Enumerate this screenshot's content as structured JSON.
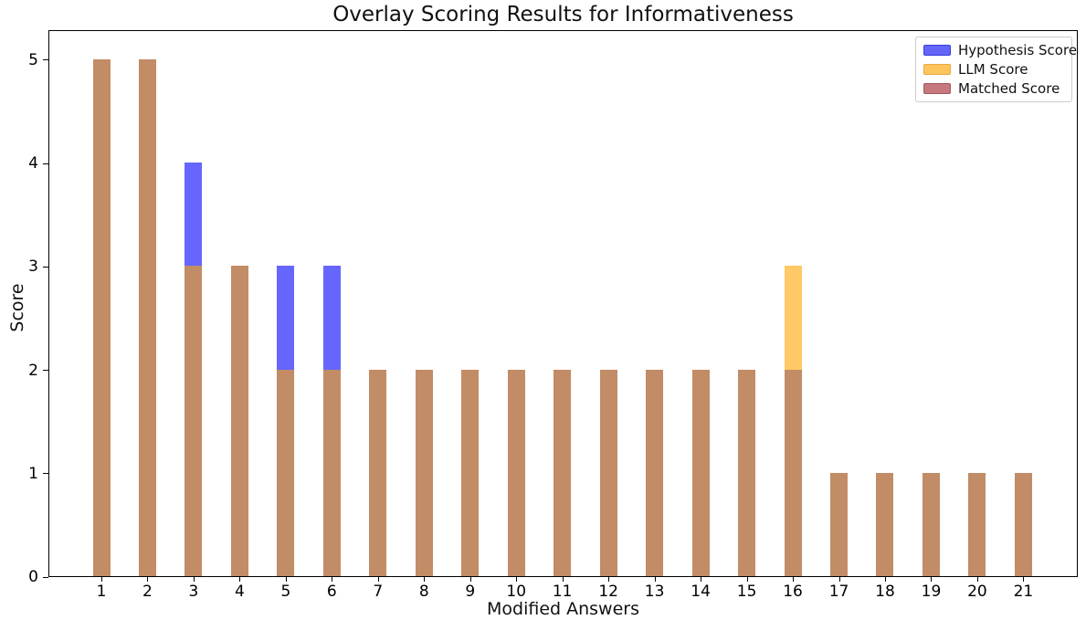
{
  "chart_data": {
    "type": "bar",
    "overlay": true,
    "title": "Overlay Scoring Results for Informativeness",
    "xlabel": "Modified Answers",
    "ylabel": "Score",
    "categories": [
      "1",
      "2",
      "3",
      "4",
      "5",
      "6",
      "7",
      "8",
      "9",
      "10",
      "11",
      "12",
      "13",
      "14",
      "15",
      "16",
      "17",
      "18",
      "19",
      "20",
      "21"
    ],
    "series": [
      {
        "name": "Hypothesis Score",
        "base_color": "#0000ff",
        "alpha": 0.6,
        "css_color": "rgba(0,0,255,0.6)",
        "legend_swatch_color": "#6466f7",
        "legend_swatch_edge": "#3b3de0",
        "values": [
          5,
          5,
          4,
          3,
          3,
          3,
          2,
          2,
          2,
          2,
          2,
          2,
          2,
          2,
          2,
          2,
          1,
          1,
          1,
          1,
          1
        ]
      },
      {
        "name": "LLM Score",
        "base_color": "#ffa500",
        "alpha": 0.6,
        "css_color": "rgba(255,165,0,0.6)",
        "legend_swatch_color": "#fdc55e",
        "legend_swatch_edge": "#e8a93c",
        "values": [
          5,
          5,
          3,
          3,
          2,
          2,
          2,
          2,
          2,
          2,
          2,
          2,
          2,
          2,
          2,
          3,
          1,
          1,
          1,
          1,
          1
        ]
      },
      {
        "name": "Matched Score",
        "base_color": "#a52a2a",
        "alpha": 0.6,
        "css_color": "rgba(165,42,42,0.6)",
        "legend_swatch_color": "#c5787e",
        "legend_swatch_edge": "#a05a5e",
        "values": [
          0,
          0,
          0,
          0,
          0,
          0,
          0,
          0,
          0,
          0,
          0,
          0,
          0,
          0,
          0,
          0,
          0,
          0,
          0,
          0,
          0
        ]
      }
    ],
    "visible_overlap_color": "#c28c66",
    "yticks": [
      0,
      1,
      2,
      3,
      4,
      5
    ],
    "ylim": [
      0,
      5.29
    ],
    "grid": false,
    "legend_position": "upper right",
    "legend_entries": [
      "Hypothesis Score",
      "LLM Score",
      "Matched Score"
    ]
  }
}
